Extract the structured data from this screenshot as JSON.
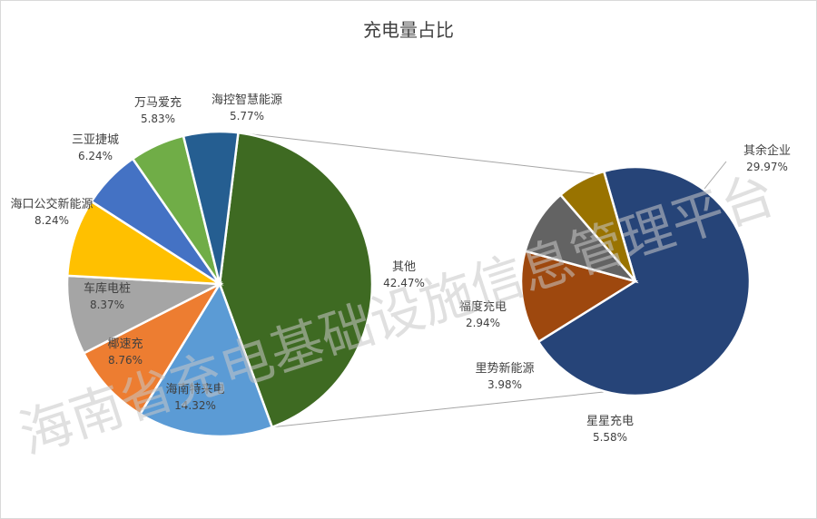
{
  "chart_data": {
    "type": "pie",
    "title": "充电量占比",
    "main_pie": {
      "slices": [
        {
          "name": "其他",
          "value": 42.47,
          "value_label": "42.47%",
          "color": "#3E6A22"
        },
        {
          "name": "海南特来电",
          "value": 14.32,
          "value_label": "14.32%",
          "color": "#5B9BD5"
        },
        {
          "name": "椰速充",
          "value": 8.76,
          "value_label": "8.76%",
          "color": "#ED7D31"
        },
        {
          "name": "车库电桩",
          "value": 8.37,
          "value_label": "8.37%",
          "color": "#A5A5A5"
        },
        {
          "name": "海口公交新能源",
          "value": 8.24,
          "value_label": "8.24%",
          "color": "#FFC000"
        },
        {
          "name": "三亚捷城",
          "value": 6.24,
          "value_label": "6.24%",
          "color": "#4472C4"
        },
        {
          "name": "万马爱充",
          "value": 5.83,
          "value_label": "5.83%",
          "color": "#70AD47"
        },
        {
          "name": "海控智慧能源",
          "value": 5.77,
          "value_label": "5.77%",
          "color": "#255E91"
        }
      ]
    },
    "secondary_pie": {
      "slices": [
        {
          "name": "其余企业",
          "value": 29.97,
          "value_label": "29.97%",
          "color": "#264478"
        },
        {
          "name": "星星充电",
          "value": 5.58,
          "value_label": "5.58%",
          "color": "#9E480E"
        },
        {
          "name": "里势新能源",
          "value": 3.98,
          "value_label": "3.98%",
          "color": "#636363"
        },
        {
          "name": "福度充电",
          "value": 2.94,
          "value_label": "2.94%",
          "color": "#997300"
        }
      ]
    }
  },
  "watermark": "海南省充电基础设施信息管理平台"
}
